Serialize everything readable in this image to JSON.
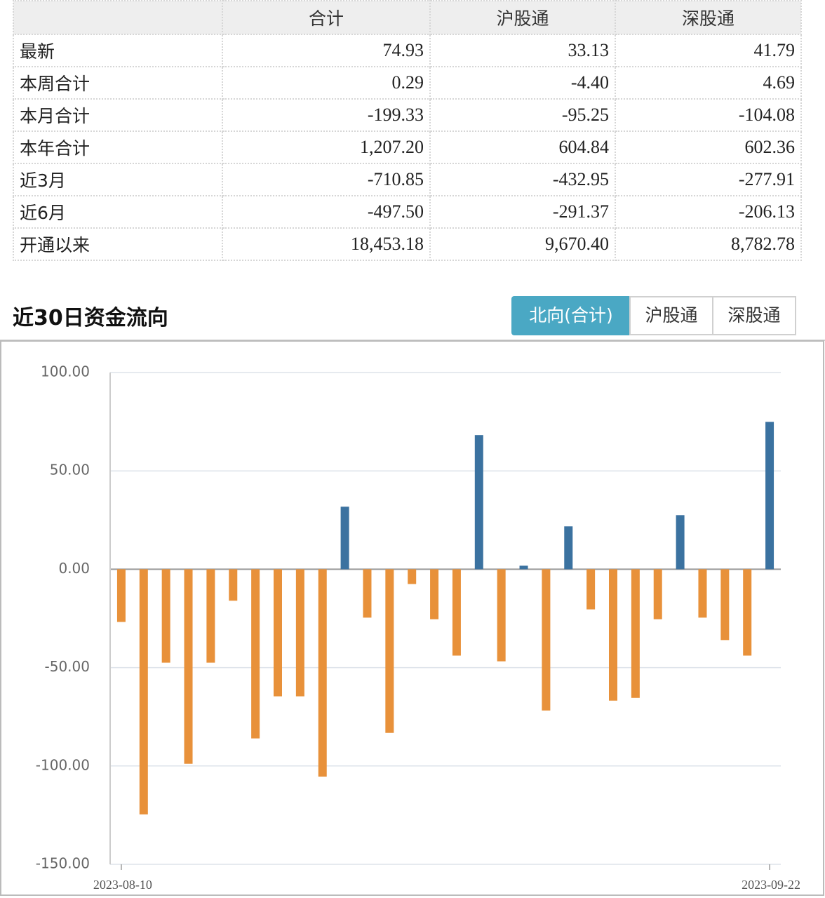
{
  "table": {
    "columns": [
      "合计",
      "沪股通",
      "深股通"
    ],
    "rows": [
      {
        "label": "最新",
        "values": [
          "74.93",
          "33.13",
          "41.79"
        ]
      },
      {
        "label": "本周合计",
        "values": [
          "0.29",
          "-4.40",
          "4.69"
        ]
      },
      {
        "label": "本月合计",
        "values": [
          "-199.33",
          "-95.25",
          "-104.08"
        ]
      },
      {
        "label": "本年合计",
        "values": [
          "1,207.20",
          "604.84",
          "602.36"
        ]
      },
      {
        "label": "近3月",
        "values": [
          "-710.85",
          "-432.95",
          "-277.91"
        ]
      },
      {
        "label": "近6月",
        "values": [
          "-497.50",
          "-291.37",
          "-206.13"
        ]
      },
      {
        "label": "开通以来",
        "values": [
          "18,453.18",
          "9,670.40",
          "8,782.78"
        ]
      }
    ]
  },
  "section_title": "近30日资金流向",
  "tabs": [
    {
      "label": "北向(合计)",
      "active": true
    },
    {
      "label": "沪股通",
      "active": false
    },
    {
      "label": "深股通",
      "active": false
    }
  ],
  "chart_data": {
    "type": "bar",
    "categories": [
      "2023-08-10",
      null,
      null,
      null,
      null,
      null,
      null,
      null,
      null,
      null,
      null,
      null,
      null,
      null,
      null,
      null,
      null,
      null,
      null,
      null,
      null,
      null,
      null,
      null,
      null,
      null,
      null,
      null,
      null,
      "2023-09-22"
    ],
    "values": [
      -26.8,
      -124.6,
      -47.5,
      -98.9,
      -47.5,
      -16,
      -86,
      -64.6,
      -64.6,
      -105.4,
      31.8,
      -24.6,
      -83.2,
      -7.5,
      -25.4,
      -43.9,
      68.2,
      -46.8,
      1.8,
      -71.8,
      21.8,
      -20.4,
      -66.8,
      -65.4,
      -25.4,
      27.5,
      -24.6,
      -36,
      -43.9,
      74.93
    ],
    "positive_color": "#3b72a0",
    "negative_color": "#e8913a",
    "ylim": [
      -150,
      100
    ],
    "yticks": [
      {
        "value": -150,
        "label": "-150.00"
      },
      {
        "value": -100,
        "label": "-100.00"
      },
      {
        "value": -50,
        "label": "-50.00"
      },
      {
        "value": 0,
        "label": "0.00"
      },
      {
        "value": 50,
        "label": "50.00"
      },
      {
        "value": 100,
        "label": "100.00"
      }
    ],
    "grid": true
  }
}
